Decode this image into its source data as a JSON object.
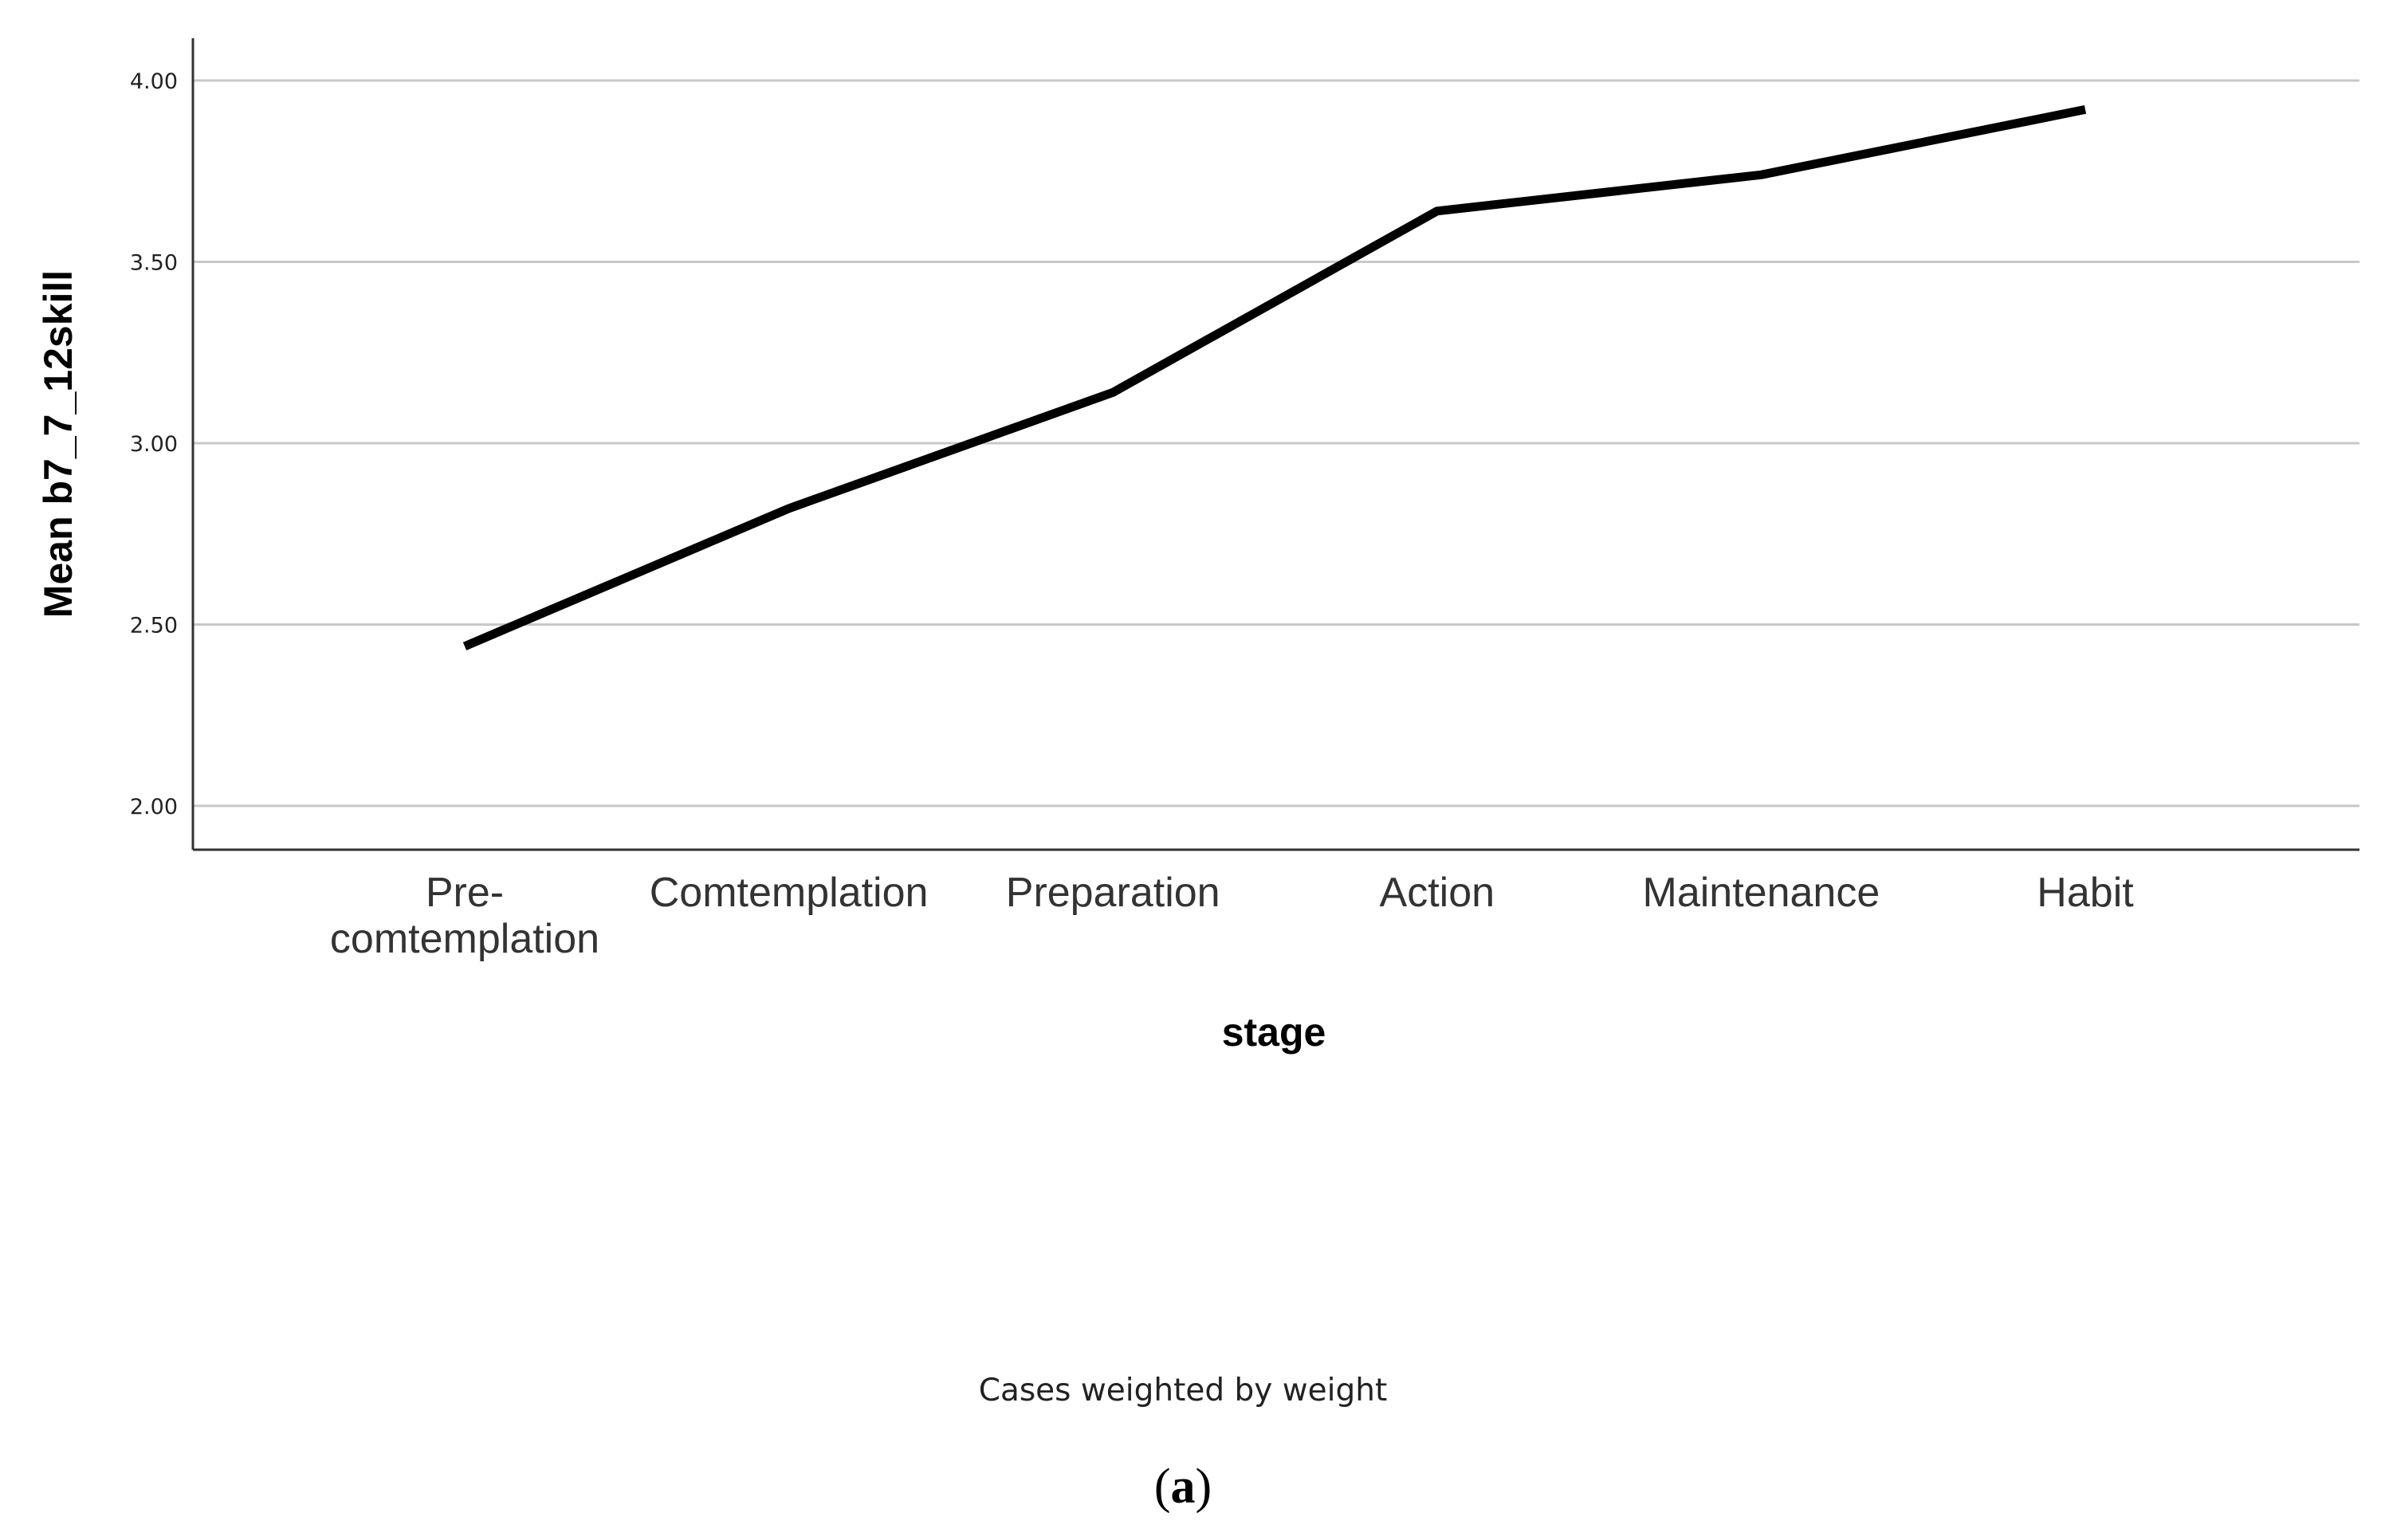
{
  "chart_data": {
    "type": "line",
    "categories": [
      [
        "Pre-",
        "comtemplation"
      ],
      [
        "Comtemplation"
      ],
      [
        "Preparation"
      ],
      [
        "Action"
      ],
      [
        "Maintenance"
      ],
      [
        "Habit"
      ]
    ],
    "series": [
      {
        "values": [
          2.44,
          2.82,
          3.14,
          3.64,
          3.74,
          3.92
        ]
      }
    ],
    "xlabel": "stage",
    "ylabel": "Mean b7_7_12skill",
    "ylim": [
      2.0,
      4.0
    ],
    "yticks": [
      "2.00",
      "2.50",
      "3.00",
      "3.50",
      "4.00"
    ],
    "ytick_values": [
      2.0,
      2.5,
      3.0,
      3.5,
      4.0
    ],
    "grid": true,
    "line_color": "#000000",
    "grid_color": "#c8c8c8",
    "footnote": "Cases weighted by weight"
  },
  "caption": {
    "open": "(",
    "letter": "a",
    "close": ")"
  }
}
